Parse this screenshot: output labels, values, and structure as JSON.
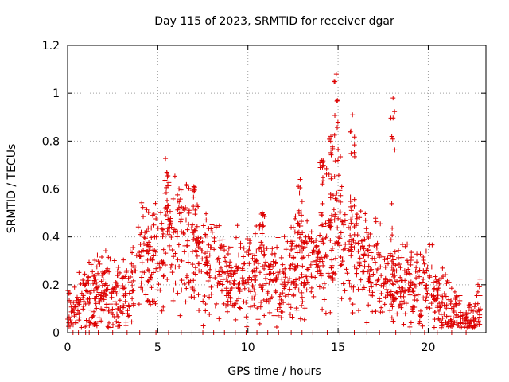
{
  "chart_data": {
    "type": "scatter",
    "title": "Day 115 of 2023, SRMTID for receiver dgar",
    "xlabel": "GPS time / hours",
    "ylabel": "SRMTID / TECUs",
    "xlim": [
      0,
      23.2
    ],
    "ylim": [
      0,
      1.2
    ],
    "x_ticks": [
      0,
      5,
      10,
      15,
      20
    ],
    "y_ticks": [
      0,
      0.2,
      0.4,
      0.6,
      0.8,
      1,
      1.2
    ],
    "x_tick_labels": [
      "0",
      "5",
      "10",
      "15",
      "20"
    ],
    "y_tick_labels": [
      "0",
      "0.2",
      "0.4",
      "0.6",
      "0.8",
      "1",
      "1.2"
    ],
    "grid": true,
    "marker": "plus",
    "color": "#dd0000",
    "envelope": {
      "description": "approximate median level of the scatter over GPS hours",
      "x": [
        0.0,
        0.5,
        1.0,
        1.5,
        2.0,
        2.5,
        3.0,
        3.5,
        4.0,
        4.5,
        5.0,
        5.5,
        6.0,
        6.5,
        7.0,
        7.5,
        8.0,
        8.5,
        9.0,
        9.5,
        10.0,
        10.5,
        11.0,
        11.5,
        12.0,
        12.5,
        13.0,
        13.5,
        14.0,
        14.5,
        15.0,
        15.5,
        16.0,
        16.5,
        17.0,
        17.5,
        18.0,
        18.5,
        19.0,
        19.5,
        20.0,
        20.5,
        21.0,
        21.5,
        22.0,
        22.5,
        23.0
      ],
      "y": [
        0.07,
        0.09,
        0.13,
        0.16,
        0.18,
        0.17,
        0.15,
        0.2,
        0.3,
        0.34,
        0.37,
        0.42,
        0.42,
        0.38,
        0.33,
        0.3,
        0.27,
        0.25,
        0.22,
        0.21,
        0.23,
        0.26,
        0.22,
        0.2,
        0.22,
        0.25,
        0.28,
        0.3,
        0.34,
        0.4,
        0.45,
        0.35,
        0.34,
        0.3,
        0.27,
        0.24,
        0.23,
        0.21,
        0.2,
        0.2,
        0.19,
        0.15,
        0.12,
        0.09,
        0.05,
        0.05,
        0.1
      ]
    },
    "spikes": [
      {
        "x": 5.5,
        "y": 0.67
      },
      {
        "x": 7.0,
        "y": 0.61
      },
      {
        "x": 10.8,
        "y": 0.5
      },
      {
        "x": 12.9,
        "y": 0.64
      },
      {
        "x": 14.1,
        "y": 0.72
      },
      {
        "x": 14.6,
        "y": 0.82
      },
      {
        "x": 14.9,
        "y": 1.08
      },
      {
        "x": 15.8,
        "y": 0.91
      },
      {
        "x": 18.05,
        "y": 0.98
      }
    ],
    "zero_markers_x": [
      0.3,
      0.6,
      1.0,
      1.2,
      1.7,
      2.5,
      3.3,
      4.0,
      4.9,
      5.6,
      6.3,
      6.9,
      7.5,
      8.1,
      8.7,
      9.3,
      9.9,
      10.5,
      11.1,
      11.7,
      12.4,
      13.0,
      13.6,
      14.4,
      15.1,
      15.9,
      16.6,
      17.3,
      18.2,
      19.0,
      19.8,
      20.5,
      21.3,
      22.1
    ]
  }
}
